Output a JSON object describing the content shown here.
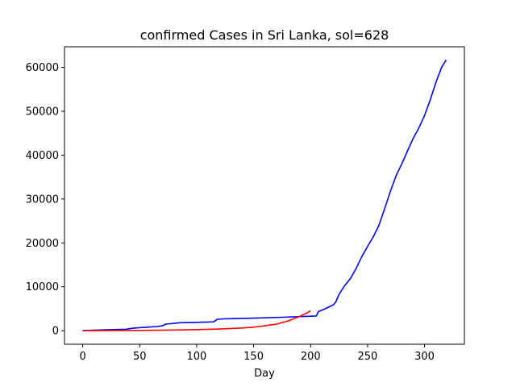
{
  "chart_data": {
    "type": "line",
    "title": "confirmed Cases in Sri Lanka, sol=628",
    "xlabel": "Day",
    "ylabel": "",
    "xlim": [
      -16,
      335
    ],
    "ylim": [
      -3100,
      64700
    ],
    "xticks": [
      0,
      50,
      100,
      150,
      200,
      250,
      300
    ],
    "yticks": [
      0,
      10000,
      20000,
      30000,
      40000,
      50000,
      60000
    ],
    "grid": false,
    "series": [
      {
        "color": "#0000ff",
        "points": [
          [
            0,
            0
          ],
          [
            10,
            120
          ],
          [
            20,
            180
          ],
          [
            30,
            260
          ],
          [
            38,
            320
          ],
          [
            42,
            500
          ],
          [
            46,
            620
          ],
          [
            55,
            780
          ],
          [
            65,
            950
          ],
          [
            70,
            1100
          ],
          [
            73,
            1500
          ],
          [
            80,
            1650
          ],
          [
            85,
            1800
          ],
          [
            100,
            1900
          ],
          [
            115,
            2000
          ],
          [
            118,
            2600
          ],
          [
            125,
            2700
          ],
          [
            150,
            2850
          ],
          [
            175,
            3050
          ],
          [
            200,
            3300
          ],
          [
            205,
            3350
          ],
          [
            207,
            4400
          ],
          [
            212,
            4900
          ],
          [
            220,
            5900
          ],
          [
            222,
            6500
          ],
          [
            225,
            8300
          ],
          [
            230,
            10300
          ],
          [
            235,
            11900
          ],
          [
            240,
            14200
          ],
          [
            245,
            16900
          ],
          [
            250,
            19200
          ],
          [
            255,
            21400
          ],
          [
            260,
            24000
          ],
          [
            265,
            27800
          ],
          [
            270,
            31700
          ],
          [
            275,
            35300
          ],
          [
            280,
            38000
          ],
          [
            285,
            40900
          ],
          [
            290,
            43800
          ],
          [
            295,
            46200
          ],
          [
            300,
            49000
          ],
          [
            305,
            52600
          ],
          [
            310,
            56600
          ],
          [
            315,
            60000
          ],
          [
            319,
            61700
          ]
        ]
      },
      {
        "color": "#ff0000",
        "points": [
          [
            0,
            0
          ],
          [
            25,
            30
          ],
          [
            50,
            60
          ],
          [
            75,
            130
          ],
          [
            100,
            250
          ],
          [
            120,
            380
          ],
          [
            140,
            620
          ],
          [
            150,
            800
          ],
          [
            160,
            1100
          ],
          [
            170,
            1500
          ],
          [
            180,
            2200
          ],
          [
            190,
            3200
          ],
          [
            195,
            3800
          ],
          [
            200,
            4500
          ]
        ]
      }
    ]
  }
}
